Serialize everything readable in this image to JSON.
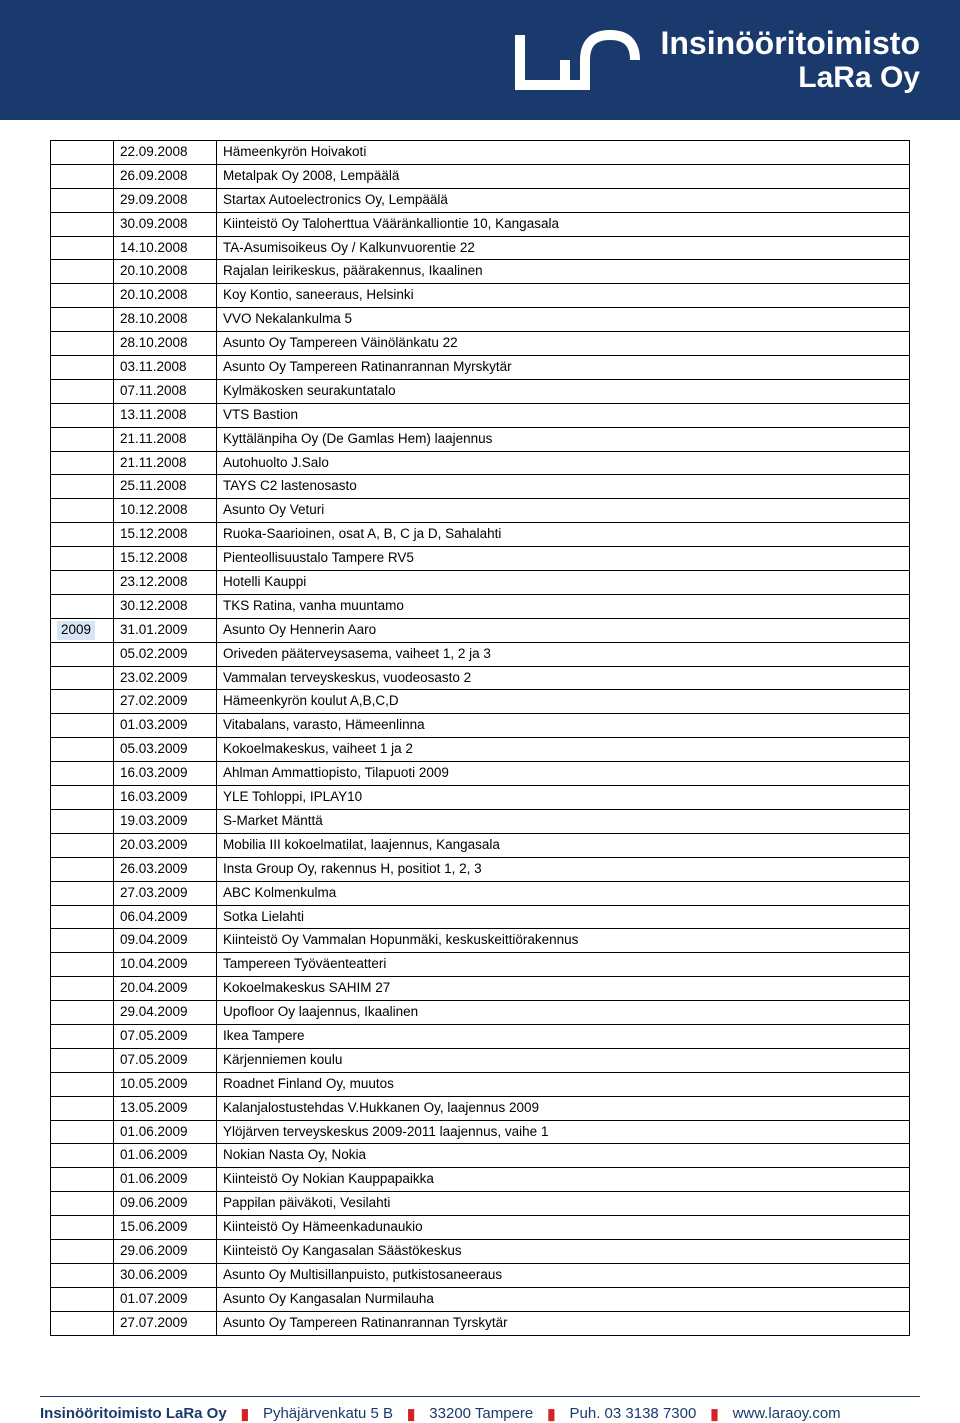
{
  "brand": {
    "name_line1": "Insinööritoimisto",
    "name_line2": "LaRa Oy",
    "header_bg": "#1a3a6e",
    "text_color": "#ffffff"
  },
  "year_group": "2009",
  "rows": [
    {
      "date": "22.09.2008",
      "desc": "Hämeenkyrön Hoivakoti"
    },
    {
      "date": "26.09.2008",
      "desc": "Metalpak Oy 2008, Lempäälä"
    },
    {
      "date": "29.09.2008",
      "desc": "Startax Autoelectronics Oy, Lempäälä"
    },
    {
      "date": "30.09.2008",
      "desc": "Kiinteistö Oy Taloherttua Vääränkalliontie 10, Kangasala"
    },
    {
      "date": "14.10.2008",
      "desc": "TA-Asumisoikeus Oy / Kalkunvuorentie 22"
    },
    {
      "date": "20.10.2008",
      "desc": "Rajalan leirikeskus, päärakennus, Ikaalinen"
    },
    {
      "date": "20.10.2008",
      "desc": "Koy Kontio, saneeraus, Helsinki"
    },
    {
      "date": "28.10.2008",
      "desc": "VVO Nekalankulma 5"
    },
    {
      "date": "28.10.2008",
      "desc": "Asunto Oy Tampereen Väinölänkatu 22"
    },
    {
      "date": "03.11.2008",
      "desc": "Asunto Oy Tampereen Ratinanrannan Myrskytär"
    },
    {
      "date": "07.11.2008",
      "desc": "Kylmäkosken seurakuntatalo"
    },
    {
      "date": "13.11.2008",
      "desc": "VTS Bastion"
    },
    {
      "date": "21.11.2008",
      "desc": "Kyttälänpiha Oy (De Gamlas Hem) laajennus"
    },
    {
      "date": "21.11.2008",
      "desc": "Autohuolto J.Salo"
    },
    {
      "date": "25.11.2008",
      "desc": "TAYS C2 lastenosasto"
    },
    {
      "date": "10.12.2008",
      "desc": "Asunto Oy Veturi"
    },
    {
      "date": "15.12.2008",
      "desc": "Ruoka-Saarioinen, osat A, B, C ja D, Sahalahti"
    },
    {
      "date": "15.12.2008",
      "desc": "Pienteollisuustalo Tampere RV5"
    },
    {
      "date": "23.12.2008",
      "desc": "Hotelli Kauppi"
    },
    {
      "date": "30.12.2008",
      "desc": "TKS Ratina, vanha muuntamo"
    },
    {
      "date": "31.01.2009",
      "desc": "Asunto Oy Hennerin Aaro",
      "year": "2009"
    },
    {
      "date": "05.02.2009",
      "desc": "Oriveden pääterveysasema, vaiheet 1, 2 ja 3"
    },
    {
      "date": "23.02.2009",
      "desc": "Vammalan terveyskeskus, vuodeosasto 2"
    },
    {
      "date": "27.02.2009",
      "desc": "Hämeenkyrön koulut A,B,C,D"
    },
    {
      "date": "01.03.2009",
      "desc": "Vitabalans, varasto, Hämeenlinna"
    },
    {
      "date": "05.03.2009",
      "desc": "Kokoelmakeskus, vaiheet 1 ja 2"
    },
    {
      "date": "16.03.2009",
      "desc": "Ahlman Ammattiopisto, Tilapuoti 2009"
    },
    {
      "date": "16.03.2009",
      "desc": "YLE Tohloppi, IPLAY10"
    },
    {
      "date": "19.03.2009",
      "desc": "S-Market Mänttä"
    },
    {
      "date": "20.03.2009",
      "desc": "Mobilia III kokoelmatilat, laajennus, Kangasala"
    },
    {
      "date": "26.03.2009",
      "desc": "Insta Group Oy, rakennus H, positiot 1, 2, 3"
    },
    {
      "date": "27.03.2009",
      "desc": "ABC Kolmenkulma"
    },
    {
      "date": "06.04.2009",
      "desc": "Sotka Lielahti"
    },
    {
      "date": "09.04.2009",
      "desc": "Kiinteistö Oy Vammalan Hopunmäki, keskuskeittiörakennus"
    },
    {
      "date": "10.04.2009",
      "desc": "Tampereen Työväenteatteri"
    },
    {
      "date": "20.04.2009",
      "desc": "Kokoelmakeskus SAHIM 27"
    },
    {
      "date": "29.04.2009",
      "desc": "Upofloor Oy laajennus, Ikaalinen"
    },
    {
      "date": "07.05.2009",
      "desc": "Ikea Tampere"
    },
    {
      "date": "07.05.2009",
      "desc": "Kärjenniemen koulu"
    },
    {
      "date": "10.05.2009",
      "desc": "Roadnet Finland Oy, muutos"
    },
    {
      "date": "13.05.2009",
      "desc": "Kalanjalostustehdas V.Hukkanen Oy, laajennus 2009"
    },
    {
      "date": "01.06.2009",
      "desc": "Ylöjärven terveyskeskus 2009-2011 laajennus, vaihe 1"
    },
    {
      "date": "01.06.2009",
      "desc": "Nokian Nasta Oy, Nokia"
    },
    {
      "date": "01.06.2009",
      "desc": "Kiinteistö Oy Nokian Kauppapaikka"
    },
    {
      "date": "09.06.2009",
      "desc": "Pappilan päiväkoti, Vesilahti"
    },
    {
      "date": "15.06.2009",
      "desc": "Kiinteistö Oy Hämeenkadunaukio"
    },
    {
      "date": "29.06.2009",
      "desc": "Kiinteistö Oy Kangasalan Säästökeskus"
    },
    {
      "date": "30.06.2009",
      "desc": "Asunto Oy Multisillanpuisto, putkistosaneeraus"
    },
    {
      "date": "01.07.2009",
      "desc": "Asunto Oy Kangasalan Nurmilauha"
    },
    {
      "date": "27.07.2009",
      "desc": "Asunto Oy Tampereen Ratinanrannan Tyrskytär"
    }
  ],
  "footer": {
    "company": "Insinööritoimisto LaRa Oy",
    "address": "Pyhäjärvenkatu 5 B",
    "postal": "33200 Tampere",
    "phone": "Puh. 03 3138 7300",
    "web": "www.laraoy.com",
    "sep_color": "#d2232a",
    "text_color": "#1a3a6e"
  }
}
